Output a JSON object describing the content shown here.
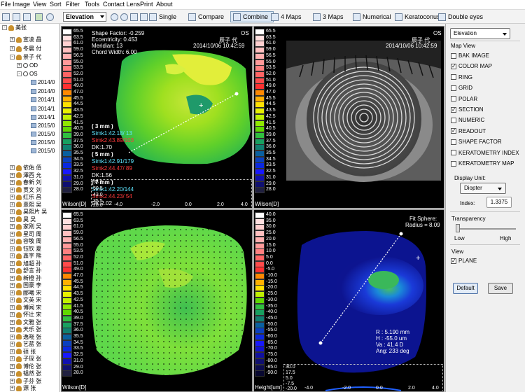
{
  "menu": [
    "File",
    "Image",
    "View",
    "Sort",
    "Filter",
    "Tools",
    "Contact Lens",
    "Print",
    "About"
  ],
  "toolbar": {
    "map_select": "Elevation",
    "single": "Single",
    "compare": "Compare",
    "combine": "Combine",
    "maps4": "4 Maps",
    "maps3": "3 Maps",
    "numerical": "Numerical",
    "keratoconus": "Keratoconus",
    "double_eyes": "Double eyes"
  },
  "tree": {
    "root": "美张",
    "top": [
      "宣凌 昌",
      "冬晨 付",
      "景子 代"
    ],
    "od": "OD",
    "os": "OS",
    "dates": [
      "2014/0",
      "2014/0",
      "2014/1",
      "2014/1",
      "2014/1",
      "2015/0",
      "2015/0",
      "2015/0",
      "2015/0"
    ],
    "patients": [
      "依佑 佰",
      "澤西 允",
      "春新 刘",
      "贯文 刘",
      "红乐 昌",
      "憙熙 吴",
      "昊熙片 吴",
      "昊 吴",
      "家刚 吴",
      "星司 周",
      "容敬 周",
      "钰钦 夏",
      "鑫字 熊",
      "旭超 孙",
      "舒言 孙",
      "新橙 孙",
      "国豪 李",
      "郦曦 宋",
      "文英 宋",
      "博闻 宋",
      "怀辻 宋",
      "文雅 张",
      "天乐 张",
      "逸晓 张",
      "艺蓝 张",
      "硕 张",
      "子琛 张",
      "博伦 张",
      "韫然 张",
      "子芬 张",
      "源 张",
      "雨语 张",
      "雨 张"
    ]
  },
  "map_tl": {
    "scale": [
      "65.5",
      "63.5",
      "61.0",
      "59.0",
      "56.5",
      "55.0",
      "53.5",
      "52.0",
      "51.0",
      "49.0",
      "47.0",
      "45.5",
      "44.5",
      "43.5",
      "42.5",
      "41.5",
      "40.5",
      "39.0",
      "37.5",
      "36.0",
      "35.5",
      "34.5",
      "33.5",
      "32.5",
      "31.0",
      "29.0",
      "28.0"
    ],
    "scale_colors": [
      "#ffffff",
      "#ffe0e0",
      "#ffd0d0",
      "#ffc0c0",
      "#ffb0b0",
      "#ff9a9a",
      "#ff8080",
      "#ff6464",
      "#ff4a4a",
      "#ff3030",
      "#ff8800",
      "#ffb000",
      "#ffe000",
      "#e8f000",
      "#c0f000",
      "#90e800",
      "#60d800",
      "#30c040",
      "#18a060",
      "#108070",
      "#0a60a0",
      "#0a40c0",
      "#0a28e0",
      "#1818ff",
      "#1010b0",
      "#101070",
      "#202040"
    ],
    "unit": "Wilson[D]",
    "shape_factor": "Shape Factor: -0.259",
    "eccentricity": "Eccentricity: 0.453",
    "meridian": "Meridian: 13",
    "chord": "Chord Width: 6.00",
    "eye": "OS",
    "name": "辰子 代",
    "date": "2014/10/06 10:42:59",
    "zone3": "( 3 mm )",
    "simk1_3": "Simk1:42.18/ 13",
    "simk2_3": "Simk2:43.89/103",
    "dk_3": "DK:1.70",
    "zone5": "( 5 mm )",
    "simk1_5": "Simk1:42.91/179",
    "simk2_5": "Simk2:44.47/ 89",
    "dk_5": "DK:1.56",
    "zone7": "( 7 mm )",
    "simk1_7": "Simk1:42.20/144",
    "simk2_7": "Simk2:44.23/ 54",
    "dk_7": "DK:2.02",
    "y_ticks": [
      "58.0",
      "50.5",
      "43.0",
      "35.5",
      "28.0"
    ],
    "x_ticks": [
      "-4.0",
      "-2.0",
      "0.0",
      "2.0",
      "4.0"
    ]
  },
  "map_tr": {
    "scale": [
      "65.5",
      "63.5",
      "61.0",
      "59.0",
      "56.5",
      "55.0",
      "53.5",
      "52.0",
      "51.0",
      "49.0",
      "47.0",
      "45.5",
      "44.5",
      "43.5",
      "42.5",
      "41.5",
      "40.5",
      "39.0",
      "37.5",
      "36.0",
      "35.5",
      "34.5",
      "33.5",
      "32.5",
      "31.0",
      "29.0",
      "28.0"
    ],
    "unit": "Wilson[D]",
    "eye": "OS",
    "name": "辰子 代",
    "date": "2014/10/06 10:42:59"
  },
  "map_bl": {
    "scale": [
      "65.5",
      "63.5",
      "61.0",
      "59.0",
      "56.5",
      "55.0",
      "53.5",
      "52.0",
      "51.0",
      "49.0",
      "47.0",
      "45.5",
      "44.5",
      "43.5",
      "42.5",
      "41.5",
      "40.5",
      "39.0",
      "37.5",
      "36.0",
      "35.5",
      "34.5",
      "33.5",
      "32.5",
      "31.0",
      "29.0",
      "28.0"
    ],
    "unit": "Wilson[D]"
  },
  "map_br": {
    "scale": [
      "40.0",
      "35.0",
      "30.0",
      "25.0",
      "20.0",
      "15.0",
      "10.0",
      "5.0",
      "0.0",
      "-5.0",
      "-10.0",
      "-15.0",
      "-20.0",
      "-25.0",
      "-30.0",
      "-35.0",
      "-40.0",
      "-45.0",
      "-50.0",
      "-55.0",
      "-60.0",
      "-65.0",
      "-70.0",
      "-75.0",
      "-80.0",
      "-85.0",
      "-90.0"
    ],
    "scale_colors": [
      "#ffffff",
      "#ffe0e0",
      "#ffd0d0",
      "#ffc0c0",
      "#ffb0b0",
      "#ff9a9a",
      "#ff8080",
      "#ff6464",
      "#ff4a4a",
      "#ff3030",
      "#ff8800",
      "#ffb000",
      "#ffe000",
      "#c0f000",
      "#60d800",
      "#30c040",
      "#18a060",
      "#108070",
      "#0a60a0",
      "#0a40c0",
      "#0a28e0",
      "#1818ff",
      "#1212d0",
      "#1010a0",
      "#101070",
      "#0c0c50",
      "#080830"
    ],
    "unit": "Height[um]",
    "fit_sphere": "Fit Sphere:",
    "radius": "Radius = 8.09",
    "r": "R   : 5.190 mm",
    "h": "H   : -55.0 um",
    "va": "Va  : 41.4 D",
    "ang": "Ang: 233 deg",
    "y_ticks": [
      "30.0",
      "17.5",
      "5.0",
      "-7.5",
      "-20.0"
    ],
    "x_ticks": [
      "-4.0",
      "-2.0",
      "0.0",
      "2.0",
      "4.0"
    ]
  },
  "panel": {
    "map_select": "Elevation",
    "map_view": "Map View",
    "options": [
      {
        "label": "BAK IMAGE",
        "checked": false
      },
      {
        "label": "COLOR MAP",
        "checked": true
      },
      {
        "label": "RING",
        "checked": false
      },
      {
        "label": "GRID",
        "checked": false
      },
      {
        "label": "POLAR",
        "checked": false
      },
      {
        "label": "SECTION",
        "checked": true
      },
      {
        "label": "NUMERIC",
        "checked": false
      },
      {
        "label": "READOUT",
        "checked": true
      },
      {
        "label": "SHAPE FACTOR",
        "checked": false
      },
      {
        "label": "KERATOMETRY INDEX",
        "checked": false
      },
      {
        "label": "KERATOMETRY MAP",
        "checked": false
      }
    ],
    "display_unit": "Display Unit:",
    "unit_value": "Diopter",
    "index_label": "Index:",
    "index_value": "1.3375",
    "transparency": "Transparency",
    "low": "Low",
    "high": "High",
    "view": "View",
    "plane_label": "PLANE",
    "plane_checked": true,
    "default_btn": "Default",
    "save_btn": "Save"
  }
}
